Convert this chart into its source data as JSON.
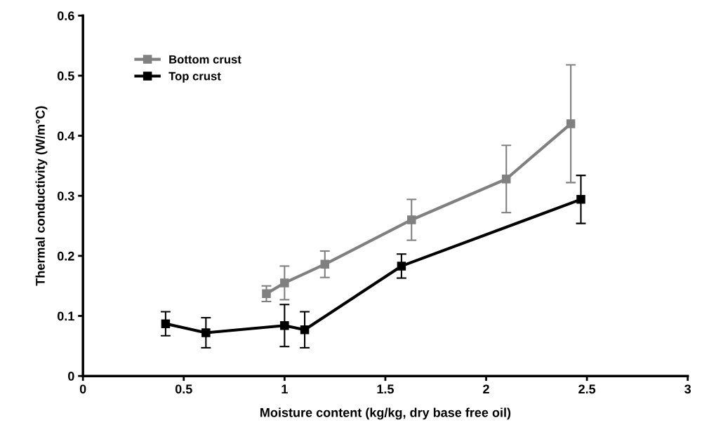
{
  "chart_data": {
    "type": "line",
    "xlabel": "Moisture content (kg/kg, dry base free oil)",
    "ylabel": "Thermal conductivity (W/m°C)",
    "xlim": [
      0,
      3
    ],
    "xticks": [
      0,
      0.5,
      1,
      1.5,
      2,
      2.5,
      3
    ],
    "ylim": [
      0,
      0.6
    ],
    "yticks": [
      0,
      0.1,
      0.2,
      0.3,
      0.4,
      0.5,
      0.6
    ],
    "grid": false,
    "legend": "top left",
    "marker": "square",
    "line_style": "solid",
    "series": [
      {
        "name": "Bottom crust",
        "color": "#808080",
        "x": [
          0.91,
          1.0,
          1.2,
          1.63,
          2.1,
          2.42
        ],
        "values": [
          0.137,
          0.155,
          0.186,
          0.26,
          0.328,
          0.42
        ],
        "errors": [
          0.013,
          0.028,
          0.022,
          0.034,
          0.056,
          0.098
        ]
      },
      {
        "name": "Top crust",
        "color": "#000000",
        "x": [
          0.41,
          0.61,
          1.0,
          1.1,
          1.58,
          2.47
        ],
        "values": [
          0.087,
          0.072,
          0.084,
          0.077,
          0.183,
          0.294
        ],
        "errors": [
          0.02,
          0.025,
          0.035,
          0.03,
          0.02,
          0.04
        ]
      }
    ]
  }
}
